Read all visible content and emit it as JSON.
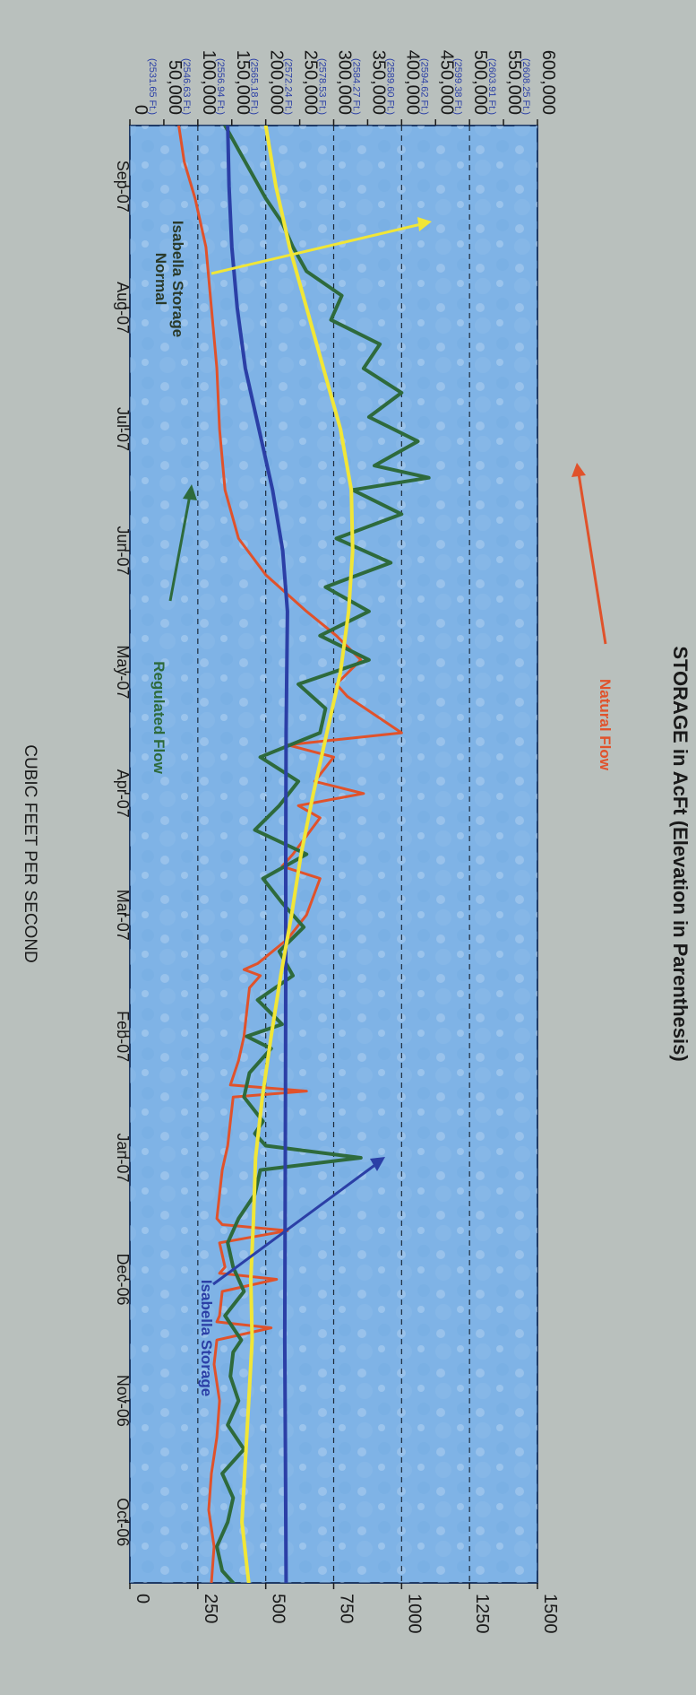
{
  "chart_data": {
    "type": "line",
    "orientation": "rotated-90-clockwise",
    "left_axis": {
      "label": "CUBIC FEET PER SECOND",
      "range": [
        0,
        1500
      ],
      "ticks": [
        "0",
        "250",
        "500",
        "750",
        "1000",
        "1250",
        "1500"
      ]
    },
    "right_axis": {
      "label": "STORAGE in AcFt (Elevation in Parenthesis)",
      "range": [
        0,
        600000
      ],
      "ticks": [
        {
          "value": "0",
          "elev": ""
        },
        {
          "value": "50,000",
          "elev": "(2531.65 Ft.)"
        },
        {
          "value": "100,000",
          "elev": "(2546.63 Ft.)"
        },
        {
          "value": "150,000",
          "elev": "(2556.94 Ft.)"
        },
        {
          "value": "200,000",
          "elev": "(2565.18 Ft.)"
        },
        {
          "value": "250,000",
          "elev": "(2572.24 Ft.)"
        },
        {
          "value": "300,000",
          "elev": "(2578.53 Ft.)"
        },
        {
          "value": "350,000",
          "elev": "(2584.27 Ft.)"
        },
        {
          "value": "400,000",
          "elev": "(2589.60 Ft.)"
        },
        {
          "value": "450,000",
          "elev": "(2594.62 Ft.)"
        },
        {
          "value": "500,000",
          "elev": "(2599.38 Ft.)"
        },
        {
          "value": "550,000",
          "elev": "(2603.91 Ft.)"
        },
        {
          "value": "600,000",
          "elev": "(2608.25 Ft.)"
        }
      ]
    },
    "x_axis": {
      "unit": "month",
      "range": [
        0,
        12
      ],
      "labels": [
        "Oct-06",
        "Nov-06",
        "Dec-06",
        "Jan-07",
        "Feb-07",
        "Mar-07",
        "Apr-07",
        "May-07",
        "Jun-07",
        "Jul-07",
        "Aug-07",
        "Sep-07"
      ]
    },
    "grid": {
      "dashed_cfs": [
        250,
        500,
        750,
        1000,
        1250
      ]
    },
    "series": [
      {
        "name": "Natural Flow",
        "axis": "left",
        "color": "#e0522b",
        "x": [
          0.0,
          0.3,
          0.6,
          0.9,
          1.2,
          1.5,
          1.8,
          2.0,
          2.1,
          2.15,
          2.2,
          2.4,
          2.5,
          2.55,
          2.6,
          2.8,
          2.9,
          2.95,
          3.0,
          3.2,
          3.4,
          3.6,
          3.8,
          4.0,
          4.05,
          4.1,
          4.3,
          4.5,
          4.7,
          4.9,
          5.0,
          5.05,
          5.1,
          5.3,
          5.5,
          5.8,
          5.9,
          6.0,
          6.3,
          6.4,
          6.5,
          6.6,
          6.8,
          6.9,
          7.0,
          7.3,
          7.4,
          7.6,
          7.8,
          8.0,
          8.3,
          8.6,
          9.0,
          9.5,
          10.0,
          10.5,
          11.0,
          11.4,
          11.7,
          12.0
        ],
        "y": [
          300,
          310,
          290,
          300,
          320,
          330,
          310,
          320,
          520,
          320,
          330,
          340,
          540,
          330,
          350,
          330,
          580,
          340,
          320,
          330,
          340,
          360,
          370,
          380,
          650,
          370,
          400,
          420,
          430,
          440,
          480,
          420,
          470,
          580,
          650,
          700,
          560,
          600,
          700,
          620,
          860,
          680,
          750,
          580,
          1000,
          800,
          760,
          850,
          760,
          650,
          500,
          400,
          350,
          330,
          320,
          300,
          280,
          240,
          200,
          180
        ]
      },
      {
        "name": "Regulated Flow",
        "axis": "left",
        "color": "#2e6a3c",
        "x": [
          0.0,
          0.1,
          0.3,
          0.5,
          0.7,
          0.9,
          1.1,
          1.3,
          1.5,
          1.7,
          1.9,
          2.0,
          2.2,
          2.4,
          2.6,
          2.8,
          3.0,
          3.2,
          3.4,
          3.5,
          3.6,
          3.7,
          3.8,
          4.0,
          4.2,
          4.4,
          4.5,
          4.6,
          4.8,
          5.0,
          5.2,
          5.4,
          5.6,
          5.8,
          6.0,
          6.2,
          6.4,
          6.6,
          6.8,
          7.0,
          7.2,
          7.4,
          7.6,
          7.8,
          8.0,
          8.2,
          8.4,
          8.6,
          8.8,
          9.0,
          9.1,
          9.2,
          9.4,
          9.6,
          9.8,
          10.0,
          10.2,
          10.4,
          10.6,
          10.8,
          11.0,
          11.2,
          11.4,
          11.6,
          11.8,
          12.0
        ],
        "y": [
          380,
          340,
          320,
          360,
          380,
          340,
          420,
          360,
          400,
          370,
          380,
          410,
          350,
          420,
          380,
          360,
          400,
          460,
          480,
          850,
          500,
          460,
          490,
          420,
          440,
          520,
          430,
          560,
          470,
          600,
          550,
          640,
          560,
          490,
          650,
          460,
          550,
          620,
          480,
          700,
          720,
          620,
          880,
          700,
          880,
          720,
          960,
          760,
          1000,
          820,
          1100,
          900,
          1060,
          880,
          1000,
          860,
          920,
          740,
          780,
          650,
          600,
          560,
          500,
          450,
          400,
          350
        ]
      },
      {
        "name": "Isabella Storage",
        "axis": "right",
        "color": "#2b3fa6",
        "x": [
          0,
          1,
          2,
          3,
          4,
          5,
          6,
          7,
          8,
          8.5,
          9,
          9.5,
          10,
          10.5,
          11,
          11.5,
          12
        ],
        "y": [
          230000,
          229000,
          228000,
          228500,
          229000,
          229500,
          229500,
          230000,
          232000,
          225000,
          210000,
          190000,
          170000,
          158000,
          150000,
          146000,
          144000
        ]
      },
      {
        "name": "Normal Isabella Storage",
        "axis": "right",
        "color": "#f1e637",
        "x": [
          0,
          0.5,
          1,
          1.5,
          2,
          2.5,
          3,
          3.5,
          4,
          4.5,
          5,
          5.5,
          6,
          6.5,
          7,
          7.5,
          8,
          8.5,
          9,
          9.5,
          10,
          10.5,
          11,
          11.5,
          12
        ],
        "y": [
          175000,
          165000,
          170000,
          175000,
          180000,
          178000,
          182000,
          185000,
          195000,
          208000,
          222000,
          238000,
          252000,
          270000,
          290000,
          310000,
          322000,
          328000,
          326000,
          310000,
          285000,
          260000,
          235000,
          215000,
          200000
        ]
      }
    ],
    "annotations": [
      {
        "text": "Isabella Storage",
        "color": "#2b3fa6"
      },
      {
        "text": "Regulated Flow",
        "color": "#2e6a3c"
      },
      {
        "text": "Natural Flow",
        "color": "#e0522b"
      },
      {
        "text": "Normal",
        "color": "#2a3a2a"
      },
      {
        "text": "Isabella Storage",
        "color": "#2a3a2a"
      }
    ]
  }
}
